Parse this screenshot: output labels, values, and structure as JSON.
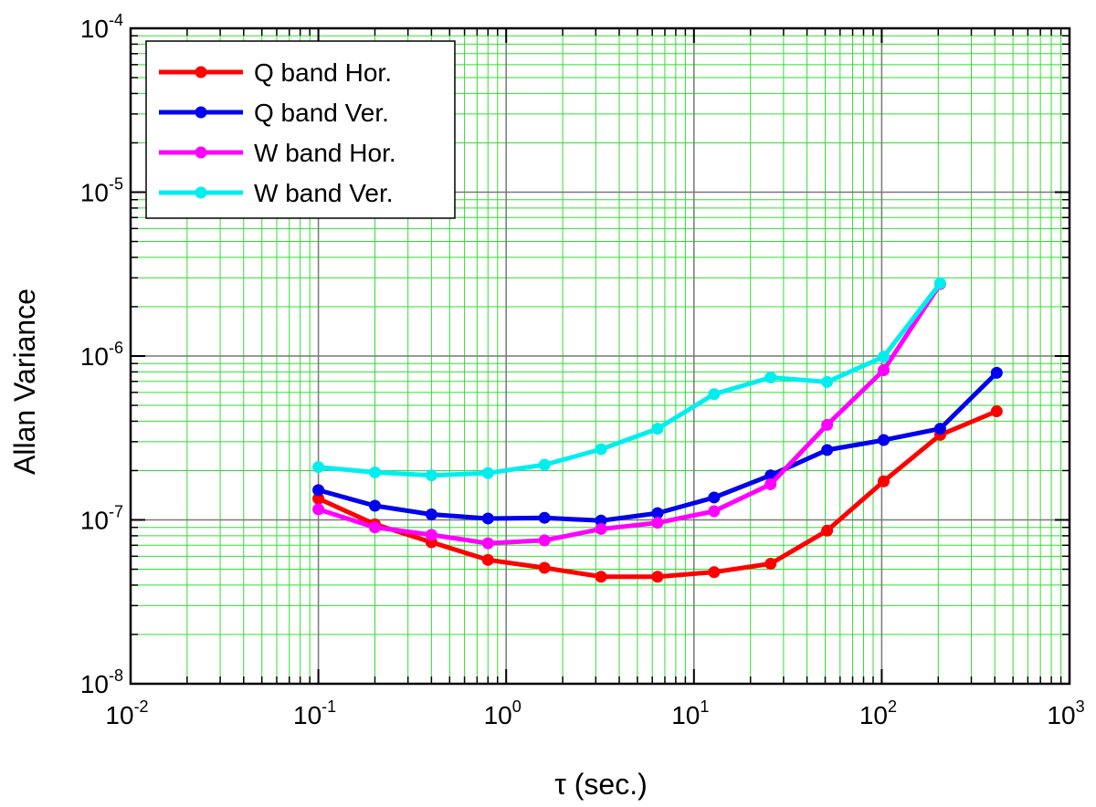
{
  "chart_data": {
    "type": "line",
    "title": "",
    "xlabel": "τ (sec.)",
    "ylabel": "Allan Variance",
    "x_scale": "log",
    "y_scale": "log",
    "xlim": [
      0.01,
      1000
    ],
    "ylim": [
      1e-08,
      0.0001
    ],
    "x_ticks": [
      {
        "value": 0.01,
        "base": "10",
        "exp": "-2"
      },
      {
        "value": 0.1,
        "base": "10",
        "exp": "-1"
      },
      {
        "value": 1,
        "base": "10",
        "exp": "0"
      },
      {
        "value": 10,
        "base": "10",
        "exp": "1"
      },
      {
        "value": 100,
        "base": "10",
        "exp": "2"
      },
      {
        "value": 1000,
        "base": "10",
        "exp": "3"
      }
    ],
    "y_ticks": [
      {
        "value": 1e-08,
        "base": "10",
        "exp": "-8"
      },
      {
        "value": 1e-07,
        "base": "10",
        "exp": "-7"
      },
      {
        "value": 1e-06,
        "base": "10",
        "exp": "-6"
      },
      {
        "value": 1e-05,
        "base": "10",
        "exp": "-5"
      },
      {
        "value": 0.0001,
        "base": "10",
        "exp": "-4"
      }
    ],
    "grid": true,
    "legend_position": "top-left",
    "series": [
      {
        "name": "Q band Hor.",
        "color": "#ff0000",
        "x": [
          0.1,
          0.2,
          0.4,
          0.8,
          1.6,
          3.2,
          6.4,
          12.8,
          25.6,
          51.2,
          102.4,
          204.8,
          409.6
        ],
        "y": [
          1.35e-07,
          9.4e-08,
          7.3e-08,
          5.7e-08,
          5.1e-08,
          4.5e-08,
          4.5e-08,
          4.8e-08,
          5.4e-08,
          8.6e-08,
          1.72e-07,
          3.3e-07,
          4.6e-07
        ]
      },
      {
        "name": "Q band Ver.",
        "color": "#0000ee",
        "x": [
          0.1,
          0.2,
          0.4,
          0.8,
          1.6,
          3.2,
          6.4,
          12.8,
          25.6,
          51.2,
          102.4,
          204.8,
          409.6
        ],
        "y": [
          1.52e-07,
          1.22e-07,
          1.08e-07,
          1.02e-07,
          1.03e-07,
          9.9e-08,
          1.1e-07,
          1.37e-07,
          1.87e-07,
          2.67e-07,
          3.07e-07,
          3.6e-07,
          7.9e-07
        ]
      },
      {
        "name": "W band Hor.",
        "color": "#ff00ff",
        "x": [
          0.1,
          0.2,
          0.4,
          0.8,
          1.6,
          3.2,
          6.4,
          12.8,
          25.6,
          51.2,
          102.4,
          204.8
        ],
        "y": [
          1.16e-07,
          9e-08,
          8.1e-08,
          7.2e-08,
          7.5e-08,
          8.8e-08,
          9.6e-08,
          1.13e-07,
          1.65e-07,
          3.8e-07,
          8.2e-07,
          2.75e-06
        ]
      },
      {
        "name": "W band Ver.",
        "color": "#00eeee",
        "x": [
          0.1,
          0.2,
          0.4,
          0.8,
          1.6,
          3.2,
          6.4,
          12.8,
          25.6,
          51.2,
          102.4,
          204.8
        ],
        "y": [
          2.1e-07,
          1.95e-07,
          1.87e-07,
          1.93e-07,
          2.17e-07,
          2.7e-07,
          3.6e-07,
          5.85e-07,
          7.4e-07,
          6.95e-07,
          9.9e-07,
          2.78e-06
        ]
      }
    ]
  }
}
